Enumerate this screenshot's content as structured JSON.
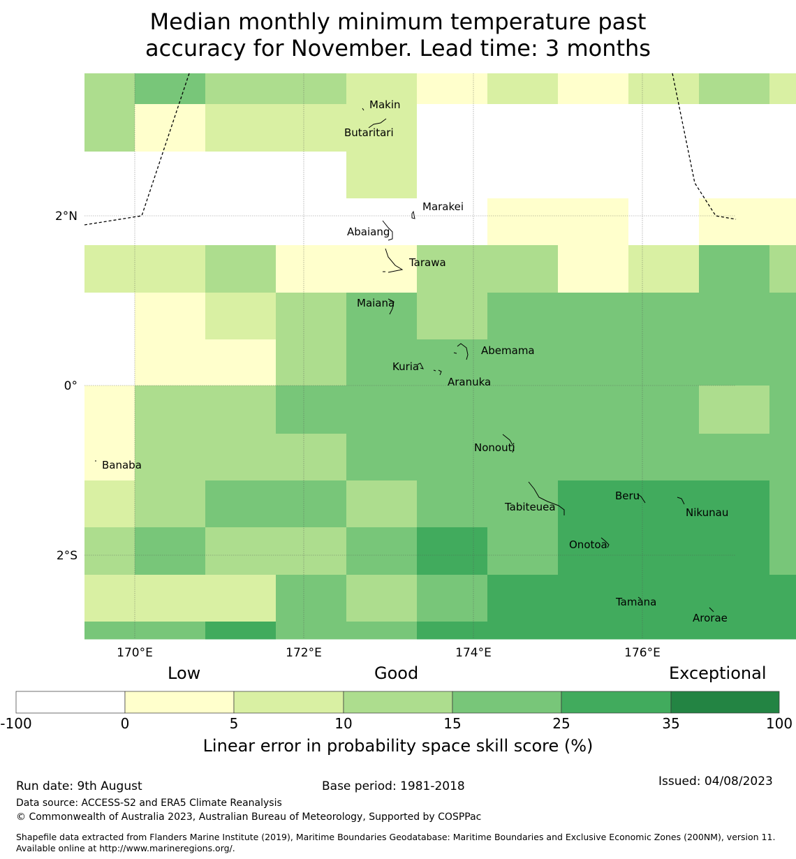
{
  "title_line1": "Median monthly minimum temperature past",
  "title_line2": "accuracy for November. Lead time: 3 months",
  "colors": {
    "white": "#ffffff",
    "c0_5": "#ffffcc",
    "c5_10": "#d9f0a3",
    "c10_15": "#addd8e",
    "c15_25": "#78c679",
    "c25_35": "#41ab5d",
    "c35_100": "#238443"
  },
  "map": {
    "lon_labels": [
      "170°E",
      "172°E",
      "174°E",
      "176°E"
    ],
    "lat_labels": [
      "2°N",
      "0°",
      "2°S"
    ],
    "islands": [
      "Makin",
      "Butaritari",
      "Marakei",
      "Abaiang",
      "Tarawa",
      "Maiana",
      "Abemama",
      "Kuria",
      "Aranuka",
      "Nonouti",
      "Banaba",
      "Beru",
      "Nikunau",
      "Tabiteuea",
      "Onotoa",
      "Tamana",
      "Arorae"
    ],
    "grid": [
      [
        "c10_15",
        "c15_25",
        "c10_15",
        "c10_15",
        "c5_10",
        "c0_5",
        "c5_10",
        "c0_5",
        "c5_10",
        "c10_15",
        "c5_10"
      ],
      [
        "c10_15",
        "c0_5",
        "c5_10",
        "c5_10",
        "c5_10",
        "white",
        "white",
        "white",
        "white",
        "white",
        "white"
      ],
      [
        "white",
        "white",
        "white",
        "white",
        "c5_10",
        "white",
        "white",
        "white",
        "white",
        "white",
        "white"
      ],
      [
        "white",
        "white",
        "white",
        "white",
        "white",
        "white",
        "c0_5",
        "c0_5",
        "white",
        "c0_5",
        "c0_5"
      ],
      [
        "c5_10",
        "c5_10",
        "c10_15",
        "c0_5",
        "c0_5",
        "c10_15",
        "c10_15",
        "c0_5",
        "c5_10",
        "c15_25",
        "c10_15"
      ],
      [
        "white",
        "c0_5",
        "c5_10",
        "c10_15",
        "c15_25",
        "c10_15",
        "c15_25",
        "c15_25",
        "c15_25",
        "c15_25",
        "c15_25"
      ],
      [
        "white",
        "c0_5",
        "c0_5",
        "c10_15",
        "c15_25",
        "c15_25",
        "c15_25",
        "c15_25",
        "c15_25",
        "c15_25",
        "c15_25"
      ],
      [
        "c0_5",
        "c10_15",
        "c10_15",
        "c15_25",
        "c15_25",
        "c15_25",
        "c15_25",
        "c15_25",
        "c15_25",
        "c10_15",
        "c15_25"
      ],
      [
        "c0_5",
        "c10_15",
        "c10_15",
        "c10_15",
        "c15_25",
        "c15_25",
        "c15_25",
        "c15_25",
        "c15_25",
        "c15_25",
        "c15_25"
      ],
      [
        "c5_10",
        "c10_15",
        "c15_25",
        "c15_25",
        "c10_15",
        "c15_25",
        "c15_25",
        "c25_35",
        "c25_35",
        "c25_35",
        "c15_25"
      ],
      [
        "c10_15",
        "c15_25",
        "c10_15",
        "c10_15",
        "c15_25",
        "c25_35",
        "c15_25",
        "c25_35",
        "c25_35",
        "c25_35",
        "c15_25"
      ],
      [
        "c5_10",
        "c5_10",
        "c5_10",
        "c15_25",
        "c10_15",
        "c15_25",
        "c25_35",
        "c25_35",
        "c25_35",
        "c25_35",
        "c25_35"
      ],
      [
        "c15_25",
        "c15_25",
        "c25_35",
        "c15_25",
        "c15_25",
        "c25_35",
        "c25_35",
        "c25_35",
        "c25_35",
        "c25_35",
        "c25_35"
      ]
    ]
  },
  "colorbar": {
    "quality_labels": [
      "Low",
      "Good",
      "Exceptional"
    ],
    "ticks": [
      "-100",
      "0",
      "5",
      "10",
      "15",
      "25",
      "35",
      "100"
    ],
    "bins": [
      "white",
      "c0_5",
      "c5_10",
      "c10_15",
      "c15_25",
      "c25_35",
      "c35_100"
    ],
    "title": "Linear error in probability space skill score (%)"
  },
  "footer": {
    "run_date": "Run date: 9th August",
    "base_period": "Base period: 1981-2018",
    "issued": "Issued: 04/08/2023",
    "data_source": "Data source: ACCESS-S2 and ERA5 Climate Reanalysis",
    "copyright": "© Commonwealth of Australia 2023, Australian Bureau of Meteorology, Supported by COSPPac",
    "shapefile": "Shapefile data extracted from Flanders Marine Institute (2019), Maritime Boundaries Geodatabase: Maritime Boundaries and Exclusive Economic Zones (200NM), version 11. Available online at http://www.marineregions.org/."
  }
}
